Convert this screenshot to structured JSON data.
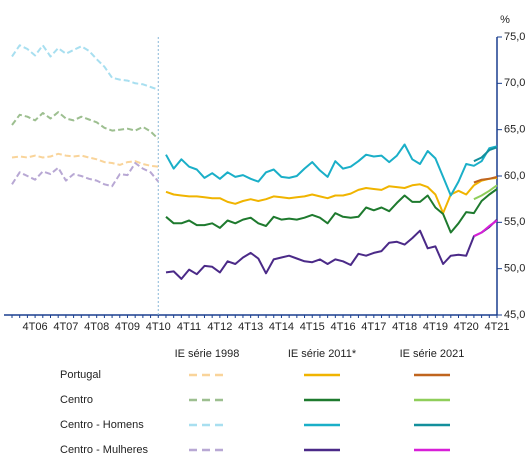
{
  "chart_data": {
    "type": "line",
    "ylabel": "%",
    "ylim": [
      45,
      75
    ],
    "yticks": [
      {
        "value": 45,
        "label": "45,0"
      },
      {
        "value": 50,
        "label": "50,0"
      },
      {
        "value": 55,
        "label": "55,0"
      },
      {
        "value": 60,
        "label": "60,0"
      },
      {
        "value": 65,
        "label": "65,0"
      },
      {
        "value": 70,
        "label": "70,0"
      },
      {
        "value": 75,
        "label": "75,0"
      }
    ],
    "categories": [
      null,
      null,
      null,
      "4T06",
      null,
      null,
      null,
      "4T07",
      null,
      null,
      null,
      "4T08",
      null,
      null,
      null,
      "4T09",
      null,
      null,
      null,
      "4T10",
      null,
      null,
      null,
      "4T11",
      null,
      null,
      null,
      "4T12",
      null,
      null,
      null,
      "4T13",
      null,
      null,
      null,
      "4T14",
      null,
      null,
      null,
      "4T15",
      null,
      null,
      null,
      "4T16",
      null,
      null,
      null,
      "4T17",
      null,
      null,
      null,
      "4T18",
      null,
      null,
      null,
      "4T19",
      null,
      null,
      null,
      "4T20",
      null,
      null,
      null,
      "4T21"
    ],
    "series_groups": [
      {
        "name": "IE série 1998",
        "dashed": true,
        "series": [
          {
            "name": "Portugal",
            "color": "#f9d49a",
            "values": [
              62.0,
              62.1,
              62.0,
              62.2,
              62.0,
              62.1,
              62.4,
              62.2,
              62.1,
              62.2,
              62.0,
              61.8,
              61.5,
              61.4,
              61.2,
              61.5,
              61.6,
              61.3,
              61.1,
              61.0,
              null,
              null,
              null,
              null,
              null,
              null,
              null,
              null,
              null,
              null,
              null,
              null,
              null,
              null,
              null,
              null,
              null,
              null,
              null,
              null,
              null,
              null,
              null,
              null,
              null,
              null,
              null,
              null,
              null,
              null,
              null,
              null,
              null,
              null,
              null,
              null,
              null,
              null,
              null,
              null,
              null,
              null,
              null,
              null
            ]
          },
          {
            "name": "Centro",
            "color": "#9dbf90",
            "values": [
              65.5,
              66.6,
              66.4,
              66.0,
              66.8,
              66.2,
              66.9,
              66.2,
              66.0,
              66.4,
              66.1,
              65.8,
              65.2,
              64.9,
              65.0,
              65.1,
              64.9,
              65.3,
              64.8,
              64.0,
              null,
              null,
              null,
              null,
              null,
              null,
              null,
              null,
              null,
              null,
              null,
              null,
              null,
              null,
              null,
              null,
              null,
              null,
              null,
              null,
              null,
              null,
              null,
              null,
              null,
              null,
              null,
              null,
              null,
              null,
              null,
              null,
              null,
              null,
              null,
              null,
              null,
              null,
              null,
              null,
              null,
              null,
              null,
              null
            ]
          },
          {
            "name": "Centro - Homens",
            "color": "#a8dff0",
            "values": [
              72.9,
              74.1,
              73.7,
              73.0,
              74.1,
              72.9,
              73.8,
              73.2,
              73.6,
              74.0,
              73.5,
              72.6,
              71.8,
              70.6,
              70.4,
              70.3,
              70.0,
              69.9,
              69.6,
              69.3,
              null,
              null,
              null,
              null,
              null,
              null,
              null,
              null,
              null,
              null,
              null,
              null,
              null,
              null,
              null,
              null,
              null,
              null,
              null,
              null,
              null,
              null,
              null,
              null,
              null,
              null,
              null,
              null,
              null,
              null,
              null,
              null,
              null,
              null,
              null,
              null,
              null,
              null,
              null,
              null,
              null,
              null,
              null,
              null
            ]
          },
          {
            "name": "Centro - Mulheres",
            "color": "#b8a8d4",
            "values": [
              59.1,
              60.4,
              60.0,
              59.6,
              60.5,
              60.2,
              60.9,
              59.5,
              60.2,
              60.0,
              59.7,
              59.5,
              59.1,
              58.9,
              60.2,
              60.1,
              61.4,
              60.8,
              60.4,
              59.4,
              null,
              null,
              null,
              null,
              null,
              null,
              null,
              null,
              null,
              null,
              null,
              null,
              null,
              null,
              null,
              null,
              null,
              null,
              null,
              null,
              null,
              null,
              null,
              null,
              null,
              null,
              null,
              null,
              null,
              null,
              null,
              null,
              null,
              null,
              null,
              null,
              null,
              null,
              null,
              null,
              null,
              null,
              null,
              null
            ]
          }
        ]
      },
      {
        "name": "IE série 2011*",
        "dashed": false,
        "series": [
          {
            "name": "Portugal",
            "color": "#f0b400",
            "values": [
              null,
              null,
              null,
              null,
              null,
              null,
              null,
              null,
              null,
              null,
              null,
              null,
              null,
              null,
              null,
              null,
              null,
              null,
              null,
              null,
              58.3,
              58.0,
              57.9,
              57.8,
              57.8,
              57.7,
              57.6,
              57.6,
              57.2,
              57.0,
              57.3,
              57.5,
              57.3,
              57.5,
              57.8,
              57.7,
              57.6,
              57.7,
              57.8,
              58.0,
              57.8,
              57.6,
              57.9,
              57.9,
              58.1,
              58.5,
              58.7,
              58.6,
              58.5,
              58.9,
              58.8,
              58.7,
              59.0,
              59.1,
              58.8,
              58.0,
              56.0,
              58.0,
              58.4,
              58.0,
              59.0,
              59.5,
              59.7,
              59.8
            ]
          },
          {
            "name": "Centro",
            "color": "#1e7a2e",
            "values": [
              null,
              null,
              null,
              null,
              null,
              null,
              null,
              null,
              null,
              null,
              null,
              null,
              null,
              null,
              null,
              null,
              null,
              null,
              null,
              null,
              55.6,
              54.9,
              54.9,
              55.2,
              54.7,
              54.7,
              54.9,
              54.4,
              55.2,
              54.9,
              55.3,
              55.5,
              54.9,
              54.6,
              55.6,
              55.3,
              55.4,
              55.3,
              55.5,
              55.8,
              55.5,
              54.9,
              56.0,
              55.6,
              55.5,
              55.6,
              56.6,
              56.3,
              56.6,
              56.2,
              57.1,
              57.9,
              57.2,
              57.2,
              57.9,
              56.6,
              55.9,
              53.9,
              54.9,
              56.1,
              56.0,
              57.3,
              58.0,
              58.6
            ]
          },
          {
            "name": "Centro - Homens",
            "color": "#1aafc8",
            "values": [
              null,
              null,
              null,
              null,
              null,
              null,
              null,
              null,
              null,
              null,
              null,
              null,
              null,
              null,
              null,
              null,
              null,
              null,
              null,
              null,
              62.3,
              60.8,
              61.8,
              61.0,
              60.7,
              59.8,
              60.3,
              59.7,
              60.4,
              59.9,
              60.1,
              59.7,
              59.4,
              60.4,
              60.7,
              59.9,
              59.8,
              60.0,
              60.8,
              61.5,
              60.6,
              59.9,
              61.6,
              60.8,
              61.0,
              61.6,
              62.3,
              62.1,
              62.2,
              61.5,
              62.2,
              63.4,
              61.8,
              61.3,
              62.7,
              61.9,
              59.9,
              57.9,
              59.4,
              61.3,
              61.1,
              61.6,
              63.0,
              63.2
            ]
          },
          {
            "name": "Centro - Mulheres",
            "color": "#4b2a88",
            "values": [
              null,
              null,
              null,
              null,
              null,
              null,
              null,
              null,
              null,
              null,
              null,
              null,
              null,
              null,
              null,
              null,
              null,
              null,
              null,
              null,
              49.6,
              49.7,
              48.9,
              49.9,
              49.4,
              50.3,
              50.2,
              49.6,
              50.8,
              50.5,
              51.2,
              51.7,
              51.1,
              49.5,
              51.0,
              51.2,
              51.4,
              51.1,
              50.8,
              50.7,
              51.0,
              50.5,
              51.0,
              50.8,
              50.4,
              51.6,
              51.4,
              51.7,
              51.9,
              52.8,
              52.9,
              52.6,
              53.3,
              54.1,
              52.2,
              52.4,
              50.5,
              51.4,
              51.5,
              51.4,
              53.5,
              53.9,
              54.5,
              55.3
            ]
          }
        ]
      },
      {
        "name": "IE série 2021",
        "dashed": false,
        "series": [
          {
            "name": "Portugal",
            "color": "#c0651e",
            "values": [
              null,
              null,
              null,
              null,
              null,
              null,
              null,
              null,
              null,
              null,
              null,
              null,
              null,
              null,
              null,
              null,
              null,
              null,
              null,
              null,
              null,
              null,
              null,
              null,
              null,
              null,
              null,
              null,
              null,
              null,
              null,
              null,
              null,
              null,
              null,
              null,
              null,
              null,
              null,
              null,
              null,
              null,
              null,
              null,
              null,
              null,
              null,
              null,
              null,
              null,
              null,
              null,
              null,
              null,
              null,
              null,
              null,
              null,
              null,
              null,
              59.3,
              59.6,
              59.7,
              59.9
            ]
          },
          {
            "name": "Centro",
            "color": "#8fce5a",
            "values": [
              null,
              null,
              null,
              null,
              null,
              null,
              null,
              null,
              null,
              null,
              null,
              null,
              null,
              null,
              null,
              null,
              null,
              null,
              null,
              null,
              null,
              null,
              null,
              null,
              null,
              null,
              null,
              null,
              null,
              null,
              null,
              null,
              null,
              null,
              null,
              null,
              null,
              null,
              null,
              null,
              null,
              null,
              null,
              null,
              null,
              null,
              null,
              null,
              null,
              null,
              null,
              null,
              null,
              null,
              null,
              null,
              null,
              null,
              null,
              null,
              57.5,
              57.9,
              58.4,
              59.0
            ]
          },
          {
            "name": "Centro - Homens",
            "color": "#138f9c",
            "values": [
              null,
              null,
              null,
              null,
              null,
              null,
              null,
              null,
              null,
              null,
              null,
              null,
              null,
              null,
              null,
              null,
              null,
              null,
              null,
              null,
              null,
              null,
              null,
              null,
              null,
              null,
              null,
              null,
              null,
              null,
              null,
              null,
              null,
              null,
              null,
              null,
              null,
              null,
              null,
              null,
              null,
              null,
              null,
              null,
              null,
              null,
              null,
              null,
              null,
              null,
              null,
              null,
              null,
              null,
              null,
              null,
              null,
              null,
              null,
              null,
              61.6,
              62.0,
              62.8,
              63.1
            ]
          },
          {
            "name": "Centro - Mulheres",
            "color": "#d81fd8",
            "values": [
              null,
              null,
              null,
              null,
              null,
              null,
              null,
              null,
              null,
              null,
              null,
              null,
              null,
              null,
              null,
              null,
              null,
              null,
              null,
              null,
              null,
              null,
              null,
              null,
              null,
              null,
              null,
              null,
              null,
              null,
              null,
              null,
              null,
              null,
              null,
              null,
              null,
              null,
              null,
              null,
              null,
              null,
              null,
              null,
              null,
              null,
              null,
              null,
              null,
              null,
              null,
              null,
              null,
              null,
              null,
              null,
              null,
              null,
              null,
              null,
              53.5,
              53.9,
              54.6,
              55.2
            ]
          }
        ]
      }
    ]
  }
}
